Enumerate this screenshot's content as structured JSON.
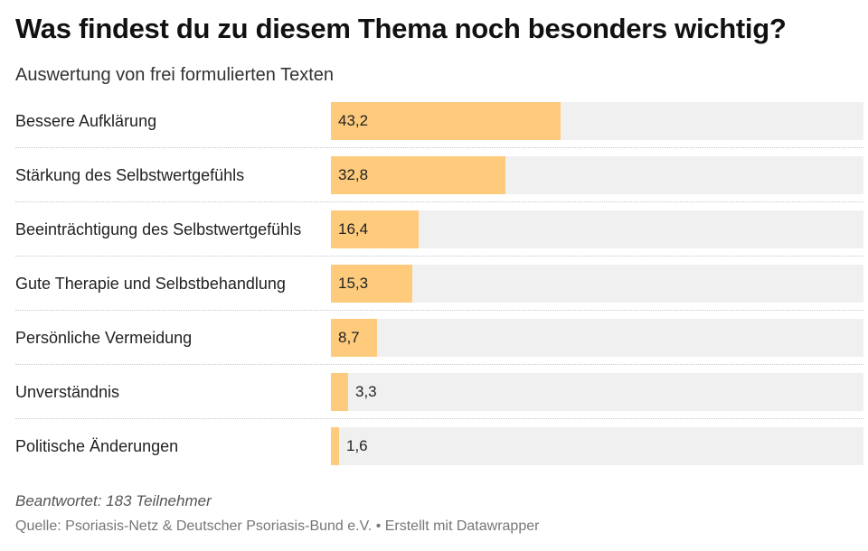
{
  "header": {
    "title": "Was findest du zu diesem Thema noch besonders wichtig?",
    "subtitle": "Auswertung von frei formulierten Texten"
  },
  "chart_data": {
    "type": "bar",
    "orientation": "horizontal",
    "categories": [
      "Bessere Aufklärung",
      "Stärkung des Selbstwertgefühls",
      "Beeinträchtigung des Selbstwertgefühls",
      "Gute Therapie und Selbstbehandlung",
      "Persönliche Vermeidung",
      "Unverständnis",
      "Politische Änderungen"
    ],
    "values": [
      43.2,
      32.8,
      16.4,
      15.3,
      8.7,
      3.3,
      1.6
    ],
    "value_labels": [
      "43,2",
      "32,8",
      "16,4",
      "15,3",
      "8,7",
      "3,3",
      "1,6"
    ],
    "xlim": [
      0,
      100
    ],
    "title": "Was findest du zu diesem Thema noch besonders wichtig?",
    "subtitle": "Auswertung von frei formulierten Texten",
    "grid": false,
    "legend": "none",
    "colors": {
      "bar": "#fecb7d",
      "track": "#f0f0f0"
    }
  },
  "footer": {
    "note": "Beantwortet: 183 Teilnehmer",
    "source": "Quelle: Psoriasis-Netz & Deutscher Psoriasis-Bund e.V. • Erstellt mit Datawrapper"
  }
}
